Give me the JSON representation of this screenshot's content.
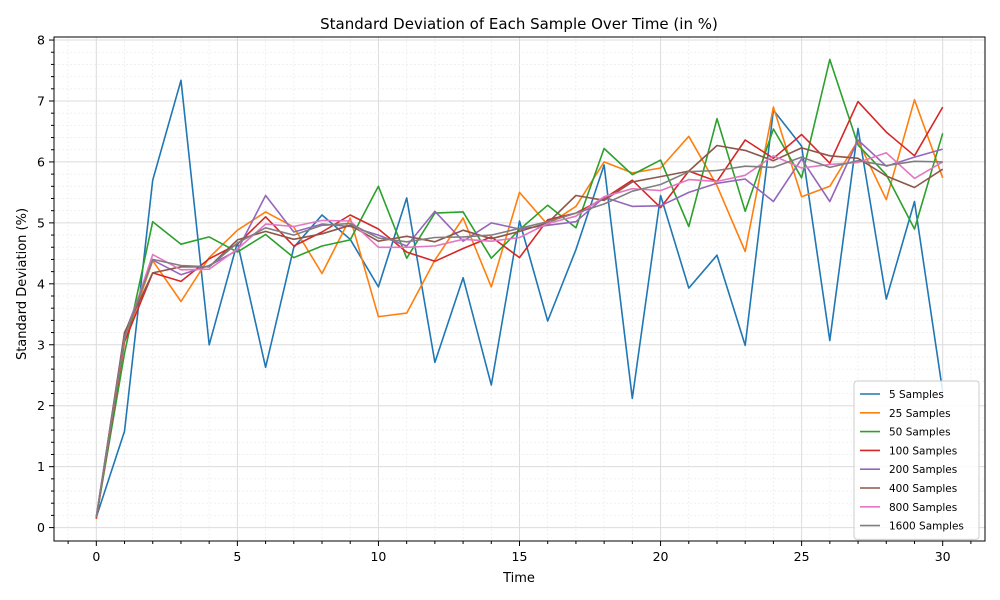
{
  "chart_data": {
    "type": "line",
    "title": "Standard Deviation of Each Sample Over Time (in %)",
    "xlabel": "Time",
    "ylabel": "Standard Deviation (%)",
    "xlim": [
      -1.5,
      31.5
    ],
    "ylim": [
      -0.22,
      8.05
    ],
    "xticks": [
      0,
      5,
      10,
      15,
      20,
      25,
      30
    ],
    "yticks": [
      0,
      1,
      2,
      3,
      4,
      5,
      6,
      7,
      8
    ],
    "grid": "major and minor",
    "legend_position": "bottom-right",
    "x": [
      0,
      1,
      2,
      3,
      4,
      5,
      6,
      7,
      8,
      9,
      10,
      11,
      12,
      13,
      14,
      15,
      16,
      17,
      18,
      19,
      20,
      21,
      22,
      23,
      24,
      25,
      26,
      27,
      28,
      29,
      30
    ],
    "series": [
      {
        "name": "5 Samples",
        "color": "#1f77b4",
        "values": [
          0.17,
          1.58,
          5.7,
          7.34,
          3.0,
          4.68,
          2.63,
          4.6,
          5.13,
          4.73,
          3.95,
          5.41,
          2.71,
          4.1,
          2.34,
          5.03,
          3.39,
          4.56,
          5.95,
          2.12,
          5.45,
          3.93,
          4.47,
          2.99,
          6.85,
          6.26,
          3.07,
          6.55,
          3.75,
          5.35,
          2.23
        ]
      },
      {
        "name": "25 Samples",
        "color": "#ff7f0e",
        "values": [
          0.14,
          3.05,
          4.38,
          3.71,
          4.43,
          4.88,
          5.18,
          4.93,
          4.17,
          5.08,
          3.46,
          3.52,
          4.39,
          5.08,
          3.95,
          5.5,
          4.97,
          5.27,
          6.0,
          5.82,
          5.9,
          6.42,
          5.61,
          4.53,
          6.9,
          5.43,
          5.6,
          6.35,
          5.38,
          7.02,
          5.74
        ]
      },
      {
        "name": "50 Samples",
        "color": "#2ca02c",
        "values": [
          0.16,
          2.86,
          5.02,
          4.65,
          4.77,
          4.52,
          4.81,
          4.43,
          4.62,
          4.72,
          5.6,
          4.42,
          5.16,
          5.18,
          4.42,
          4.89,
          5.29,
          4.92,
          6.22,
          5.79,
          6.03,
          4.94,
          6.71,
          5.19,
          6.54,
          5.74,
          7.68,
          6.28,
          5.79,
          4.9,
          6.47
        ]
      },
      {
        "name": "100 Samples",
        "color": "#d62728",
        "values": [
          0.15,
          3.05,
          4.18,
          4.04,
          4.41,
          4.65,
          5.1,
          4.62,
          4.85,
          5.13,
          4.9,
          4.52,
          4.37,
          4.58,
          4.77,
          4.43,
          5.05,
          5.16,
          5.4,
          5.7,
          5.25,
          5.85,
          5.68,
          6.36,
          6.06,
          6.45,
          5.98,
          6.99,
          6.49,
          6.1,
          6.9
        ]
      },
      {
        "name": "200 Samples",
        "color": "#9467bd",
        "values": [
          0.18,
          3.17,
          4.39,
          4.15,
          4.3,
          4.55,
          5.45,
          4.85,
          4.98,
          4.94,
          4.8,
          4.62,
          5.19,
          4.7,
          5.0,
          4.9,
          4.96,
          5.02,
          5.42,
          5.27,
          5.28,
          5.5,
          5.65,
          5.72,
          5.35,
          6.05,
          5.35,
          6.36,
          5.93,
          6.08,
          6.21
        ]
      },
      {
        "name": "400 Samples",
        "color": "#8c564b",
        "values": [
          0.16,
          3.2,
          4.18,
          4.28,
          4.28,
          4.72,
          4.86,
          4.73,
          4.82,
          4.96,
          4.7,
          4.78,
          4.69,
          4.88,
          4.74,
          4.86,
          5.0,
          5.45,
          5.37,
          5.67,
          5.76,
          5.85,
          6.27,
          6.19,
          6.02,
          6.23,
          6.1,
          6.06,
          5.77,
          5.58,
          5.88
        ]
      },
      {
        "name": "800 Samples",
        "color": "#e377c2",
        "values": [
          0.17,
          3.1,
          4.48,
          4.23,
          4.24,
          4.57,
          4.98,
          4.94,
          5.04,
          5.03,
          4.6,
          4.6,
          4.62,
          4.73,
          4.7,
          4.76,
          4.99,
          5.11,
          5.43,
          5.56,
          5.53,
          5.71,
          5.68,
          5.78,
          6.1,
          5.9,
          5.96,
          5.99,
          6.15,
          5.73,
          6.0
        ]
      },
      {
        "name": "1600 Samples",
        "color": "#7f7f7f",
        "values": [
          0.17,
          3.12,
          4.4,
          4.3,
          4.28,
          4.67,
          4.92,
          4.8,
          4.96,
          4.99,
          4.75,
          4.69,
          4.76,
          4.77,
          4.8,
          4.91,
          5.02,
          5.16,
          5.31,
          5.52,
          5.63,
          5.84,
          5.86,
          5.93,
          5.91,
          6.08,
          5.91,
          6.02,
          5.94,
          6.01,
          6.0
        ]
      }
    ]
  }
}
